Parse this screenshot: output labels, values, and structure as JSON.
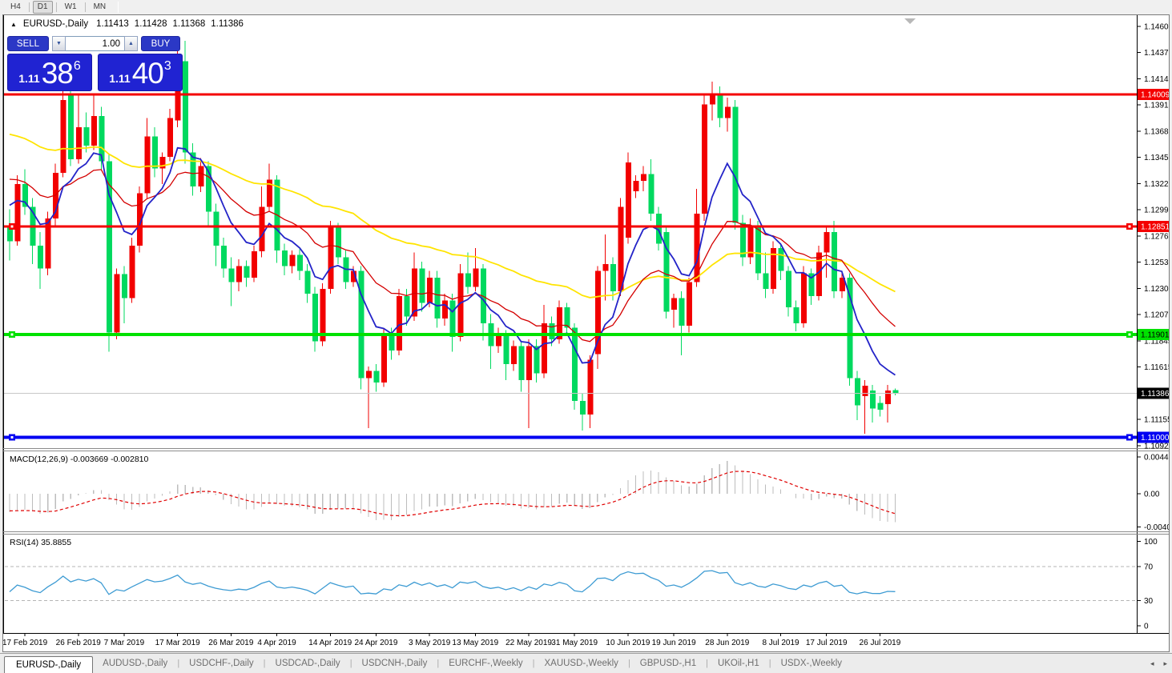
{
  "toolbar": {
    "timeframes": [
      {
        "label": "H4",
        "active": false
      },
      {
        "label": "D1",
        "active": true
      },
      {
        "label": "W1",
        "active": false
      },
      {
        "label": "MN",
        "active": false
      }
    ]
  },
  "chart": {
    "header": {
      "collapse_icon": "▲",
      "symbol": "EURUSD-,Daily",
      "open": "1.11413",
      "high": "1.11428",
      "low": "1.11368",
      "close": "1.11386"
    },
    "trade_panel": {
      "sell_label": "SELL",
      "buy_label": "BUY",
      "amount": "1.00",
      "sell_price": {
        "prefix": "1.11",
        "big": "38",
        "sup": "6"
      },
      "buy_price": {
        "prefix": "1.11",
        "big": "40",
        "sup": "3"
      }
    },
    "macd_panel": {
      "label": "MACD(12,26,9) -0.003669 -0.002810",
      "value": "-0.003669",
      "signal_value": "-0.002810"
    },
    "rsi_panel": {
      "label": "RSI(14) 35.8855",
      "value": "35.8855"
    }
  },
  "colors": {
    "bull": "#f20000",
    "bear": "#00d95f",
    "ma_fast": "#2424c8",
    "ma_mid": "#d40000",
    "ma_slow": "#ffe400",
    "macd_hist": "#bdbdbd",
    "macd_signal": "#e00000",
    "rsi_line": "#3d9bd3",
    "level_red": "#f40000",
    "level_green": "#00e100",
    "level_blue": "#0000f2",
    "current_line": "#c8c8c8",
    "current_badge_bg": "#000000"
  },
  "chart_data": {
    "type": "candlestick",
    "title": "EURUSD-,Daily",
    "y_axis": {
      "min": 1.1092,
      "max": 1.1464,
      "ticks": [
        "1.14605",
        "1.14375",
        "1.14145",
        "1.13915",
        "1.13685",
        "1.13455",
        "1.13225",
        "1.12995",
        "1.12765",
        "1.12535",
        "1.12305",
        "1.12075",
        "1.11845",
        "1.11615",
        "1.11155",
        "1.10925"
      ]
    },
    "levels": [
      {
        "label": "1.14009",
        "price": 1.14009,
        "color": "#f40000",
        "width": 3,
        "badge_fg": "#ffffff",
        "selected": false
      },
      {
        "label": "1.12851",
        "price": 1.12851,
        "color": "#f40000",
        "width": 3,
        "badge_fg": "#ffffff",
        "selected": true
      },
      {
        "label": "1.11901",
        "price": 1.11901,
        "color": "#00e100",
        "width": 4,
        "badge_fg": "#000000",
        "selected": true
      },
      {
        "label": "1.11000",
        "price": 1.11,
        "color": "#0000f2",
        "width": 4,
        "badge_fg": "#ffffff",
        "selected": true
      }
    ],
    "current_price": {
      "label": "1.11386",
      "price": 1.11386
    },
    "date_ticks": [
      {
        "label": "17 Feb 2019",
        "index": 2
      },
      {
        "label": "26 Feb 2019",
        "index": 9
      },
      {
        "label": "7 Mar 2019",
        "index": 15
      },
      {
        "label": "17 Mar 2019",
        "index": 22
      },
      {
        "label": "26 Mar 2019",
        "index": 29
      },
      {
        "label": "4 Apr 2019",
        "index": 35
      },
      {
        "label": "14 Apr 2019",
        "index": 42
      },
      {
        "label": "24 Apr 2019",
        "index": 48
      },
      {
        "label": "3 May 2019",
        "index": 55
      },
      {
        "label": "13 May 2019",
        "index": 61
      },
      {
        "label": "22 May 2019",
        "index": 68
      },
      {
        "label": "31 May 2019",
        "index": 74
      },
      {
        "label": "10 Jun 2019",
        "index": 81
      },
      {
        "label": "19 Jun 2019",
        "index": 87
      },
      {
        "label": "28 Jun 2019",
        "index": 94
      },
      {
        "label": "8 Jul 2019",
        "index": 101
      },
      {
        "label": "17 Jul 2019",
        "index": 107
      },
      {
        "label": "26 Jul 2019",
        "index": 114
      }
    ],
    "indicators": {
      "ma_fast_period": 8,
      "ma_mid_period": 21,
      "ma_slow_period": 55,
      "macd": {
        "fast": 12,
        "slow": 26,
        "signal": 9,
        "ticks": [
          {
            "label": "0.004482",
            "v": 0.004482
          },
          {
            "label": "0.00",
            "v": 0
          },
          {
            "label": "-0.004057",
            "v": -0.004057
          }
        ]
      },
      "rsi": {
        "period": 14,
        "ticks": [
          {
            "label": "100",
            "v": 100
          },
          {
            "label": "70",
            "v": 70
          },
          {
            "label": "30",
            "v": 30
          },
          {
            "label": "0",
            "v": 0
          }
        ],
        "guides": [
          70,
          30
        ]
      }
    },
    "warmup": {
      "from": 1.1455,
      "to": 1.13,
      "count": 50,
      "wiggle": 0.0012
    },
    "ohlc": [
      [
        1.1285,
        1.13,
        1.1255,
        1.1272
      ],
      [
        1.1272,
        1.133,
        1.1268,
        1.1322
      ],
      [
        1.1322,
        1.1335,
        1.1295,
        1.1302
      ],
      [
        1.1302,
        1.131,
        1.1252,
        1.1268
      ],
      [
        1.1268,
        1.128,
        1.123,
        1.1248
      ],
      [
        1.1248,
        1.1298,
        1.1242,
        1.1292
      ],
      [
        1.1292,
        1.134,
        1.1285,
        1.1332
      ],
      [
        1.1332,
        1.142,
        1.1328,
        1.1396
      ],
      [
        1.14,
        1.1435,
        1.1338,
        1.1344
      ],
      [
        1.1344,
        1.1402,
        1.134,
        1.1372
      ],
      [
        1.1372,
        1.1385,
        1.135,
        1.1356
      ],
      [
        1.1356,
        1.14,
        1.1352,
        1.1382
      ],
      [
        1.1382,
        1.139,
        1.1335,
        1.1342
      ],
      [
        1.1342,
        1.1348,
        1.1175,
        1.1192
      ],
      [
        1.1192,
        1.1248,
        1.1186,
        1.1243
      ],
      [
        1.1243,
        1.125,
        1.12,
        1.1222
      ],
      [
        1.1222,
        1.1275,
        1.1218,
        1.1268
      ],
      [
        1.1268,
        1.132,
        1.1262,
        1.1314
      ],
      [
        1.1314,
        1.138,
        1.131,
        1.1364
      ],
      [
        1.1364,
        1.1372,
        1.1328,
        1.1336
      ],
      [
        1.1336,
        1.135,
        1.1322,
        1.1346
      ],
      [
        1.1346,
        1.1388,
        1.1342,
        1.138
      ],
      [
        1.1378,
        1.1443,
        1.1372,
        1.143
      ],
      [
        1.143,
        1.1448,
        1.134,
        1.135
      ],
      [
        1.135,
        1.1358,
        1.1312,
        1.132
      ],
      [
        1.132,
        1.1345,
        1.1315,
        1.1338
      ],
      [
        1.1338,
        1.1342,
        1.1285,
        1.1298
      ],
      [
        1.1298,
        1.1305,
        1.125,
        1.1268
      ],
      [
        1.1268,
        1.1275,
        1.124,
        1.1248
      ],
      [
        1.1248,
        1.1258,
        1.1215,
        1.1236
      ],
      [
        1.1236,
        1.1256,
        1.1228,
        1.125
      ],
      [
        1.125,
        1.1255,
        1.1232,
        1.124
      ],
      [
        1.124,
        1.1268,
        1.1236,
        1.1263
      ],
      [
        1.1263,
        1.132,
        1.1258,
        1.1302
      ],
      [
        1.1302,
        1.134,
        1.1298,
        1.1326
      ],
      [
        1.1326,
        1.133,
        1.1253,
        1.1264
      ],
      [
        1.1264,
        1.127,
        1.1242,
        1.125
      ],
      [
        1.125,
        1.1264,
        1.1244,
        1.126
      ],
      [
        1.126,
        1.1265,
        1.1238,
        1.1246
      ],
      [
        1.1246,
        1.1252,
        1.1218,
        1.1226
      ],
      [
        1.1226,
        1.1232,
        1.1175,
        1.1184
      ],
      [
        1.1184,
        1.1235,
        1.118,
        1.123
      ],
      [
        1.123,
        1.129,
        1.1226,
        1.1284
      ],
      [
        1.1284,
        1.1288,
        1.1252,
        1.1258
      ],
      [
        1.1258,
        1.1264,
        1.123,
        1.1236
      ],
      [
        1.1236,
        1.125,
        1.1232,
        1.1246
      ],
      [
        1.1246,
        1.125,
        1.1142,
        1.1152
      ],
      [
        1.1152,
        1.1162,
        1.1108,
        1.1158
      ],
      [
        1.1158,
        1.1164,
        1.114,
        1.1148
      ],
      [
        1.1148,
        1.1195,
        1.1144,
        1.119
      ],
      [
        1.119,
        1.1196,
        1.1168,
        1.1176
      ],
      [
        1.1176,
        1.123,
        1.1172,
        1.1224
      ],
      [
        1.1224,
        1.123,
        1.1198,
        1.1206
      ],
      [
        1.1206,
        1.1262,
        1.1202,
        1.1248
      ],
      [
        1.1248,
        1.1254,
        1.121,
        1.1218
      ],
      [
        1.1218,
        1.1246,
        1.1214,
        1.124
      ],
      [
        1.124,
        1.1246,
        1.1196,
        1.1204
      ],
      [
        1.1204,
        1.1226,
        1.1198,
        1.122
      ],
      [
        1.122,
        1.1226,
        1.1175,
        1.1188
      ],
      [
        1.1188,
        1.1252,
        1.1184,
        1.1244
      ],
      [
        1.1244,
        1.1262,
        1.1226,
        1.1232
      ],
      [
        1.1232,
        1.1266,
        1.1228,
        1.1248
      ],
      [
        1.1248,
        1.1252,
        1.1185,
        1.12
      ],
      [
        1.12,
        1.1208,
        1.116,
        1.118
      ],
      [
        1.118,
        1.1196,
        1.1174,
        1.119
      ],
      [
        1.119,
        1.1194,
        1.115,
        1.1164
      ],
      [
        1.1164,
        1.1185,
        1.1158,
        1.118
      ],
      [
        1.118,
        1.1184,
        1.114,
        1.115
      ],
      [
        1.115,
        1.1186,
        1.1108,
        1.118
      ],
      [
        1.118,
        1.1186,
        1.1148,
        1.1156
      ],
      [
        1.1156,
        1.1216,
        1.1152,
        1.12
      ],
      [
        1.12,
        1.1206,
        1.118,
        1.1186
      ],
      [
        1.1186,
        1.122,
        1.1182,
        1.1214
      ],
      [
        1.1214,
        1.1218,
        1.119,
        1.1196
      ],
      [
        1.1196,
        1.12,
        1.1124,
        1.1132
      ],
      [
        1.1132,
        1.1138,
        1.1106,
        1.112
      ],
      [
        1.112,
        1.1172,
        1.1108,
        1.1168
      ],
      [
        1.1173,
        1.125,
        1.116,
        1.1246
      ],
      [
        1.1246,
        1.1278,
        1.122,
        1.1252
      ],
      [
        1.1252,
        1.1258,
        1.122,
        1.1228
      ],
      [
        1.1228,
        1.131,
        1.1224,
        1.1302
      ],
      [
        1.1275,
        1.135,
        1.127,
        1.1341
      ],
      [
        1.1316,
        1.133,
        1.131,
        1.1325
      ],
      [
        1.1325,
        1.1338,
        1.1316,
        1.1331
      ],
      [
        1.1331,
        1.1344,
        1.129,
        1.1296
      ],
      [
        1.1296,
        1.1302,
        1.1264,
        1.127
      ],
      [
        1.128,
        1.1286,
        1.1204,
        1.121
      ],
      [
        1.1212,
        1.1226,
        1.1196,
        1.1222
      ],
      [
        1.1222,
        1.1228,
        1.1172,
        1.1198
      ],
      [
        1.1198,
        1.124,
        1.1192,
        1.1236
      ],
      [
        1.1236,
        1.1318,
        1.1232,
        1.1296
      ],
      [
        1.1296,
        1.14,
        1.129,
        1.1392
      ],
      [
        1.1392,
        1.1412,
        1.1378,
        1.1402
      ],
      [
        1.1402,
        1.1408,
        1.1372,
        1.138
      ],
      [
        1.138,
        1.1398,
        1.1368,
        1.139
      ],
      [
        1.139,
        1.1396,
        1.1282,
        1.1288
      ],
      [
        1.1288,
        1.1295,
        1.125,
        1.1258
      ],
      [
        1.1258,
        1.1292,
        1.1252,
        1.1286
      ],
      [
        1.1286,
        1.129,
        1.1238,
        1.1244
      ],
      [
        1.1244,
        1.1262,
        1.1222,
        1.123
      ],
      [
        1.123,
        1.1272,
        1.1226,
        1.1266
      ],
      [
        1.1266,
        1.127,
        1.1238,
        1.1246
      ],
      [
        1.1246,
        1.125,
        1.1206,
        1.1214
      ],
      [
        1.1214,
        1.122,
        1.1193,
        1.12
      ],
      [
        1.12,
        1.125,
        1.1196,
        1.1244
      ],
      [
        1.1244,
        1.1248,
        1.1216,
        1.1224
      ],
      [
        1.1224,
        1.1268,
        1.122,
        1.1262
      ],
      [
        1.1262,
        1.1286,
        1.124,
        1.128
      ],
      [
        1.128,
        1.129,
        1.1222,
        1.1228
      ],
      [
        1.1228,
        1.1244,
        1.1222,
        1.124
      ],
      [
        1.124,
        1.1244,
        1.1145,
        1.1152
      ],
      [
        1.1152,
        1.1158,
        1.1115,
        1.1128
      ],
      [
        1.1136,
        1.115,
        1.1103,
        1.1145
      ],
      [
        1.1141,
        1.1146,
        1.1113,
        1.1125
      ],
      [
        1.113,
        1.1136,
        1.1118,
        1.1124
      ],
      [
        1.1129,
        1.1146,
        1.1113,
        1.1141
      ],
      [
        1.11413,
        1.11428,
        1.11368,
        1.11386
      ]
    ]
  },
  "tabs": {
    "items": [
      {
        "label": "EURUSD-,Daily",
        "active": true
      },
      {
        "label": "AUDUSD-,Daily",
        "active": false
      },
      {
        "label": "USDCHF-,Daily",
        "active": false
      },
      {
        "label": "USDCAD-,Daily",
        "active": false
      },
      {
        "label": "USDCNH-,Daily",
        "active": false
      },
      {
        "label": "EURCHF-,Weekly",
        "active": false
      },
      {
        "label": "XAUUSD-,Weekly",
        "active": false
      },
      {
        "label": "GBPUSD-,H1",
        "active": false
      },
      {
        "label": "UKOil-,H1",
        "active": false
      },
      {
        "label": "USDX-,Weekly",
        "active": false
      }
    ],
    "scroll_left_icon": "◂",
    "scroll_right_icon": "▸"
  }
}
